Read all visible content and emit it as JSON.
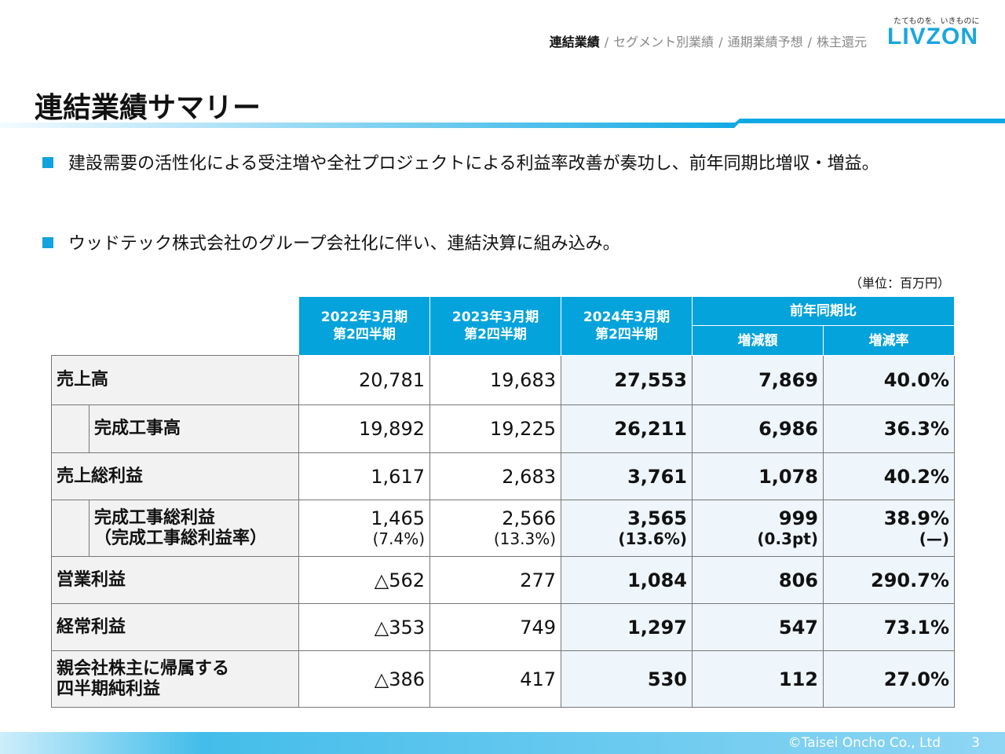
{
  "nav": {
    "items": [
      "連結業績",
      "セグメント別業績",
      "通期業績予想",
      "株主還元"
    ],
    "separator": "/",
    "active": 0
  },
  "brand": {
    "tagline": "たてものを、いきものに",
    "logo": "LIVZON",
    "color": "#1aa6e0"
  },
  "title": "連結業績サマリー",
  "bullets": [
    "建設需要の活性化による受注増や全社プロジェクトによる利益率改善が奏功し、前年同期比増収・増益。",
    "ウッドテック株式会社のグループ会社化に伴い、連結決算に組み込み。"
  ],
  "unit": "（単位：百万円）",
  "table": {
    "headers": [
      "2022年3月期\n第2四半期",
      "2023年3月期\n第2四半期",
      "2024年3月期\n第2四半期"
    ],
    "yoy_header": "前年同期比",
    "yoy_sub": [
      "増減額",
      "増減率"
    ],
    "rows": [
      {
        "label": "売上高",
        "indent": false,
        "values": [
          "20,781",
          "19,683",
          "27,553",
          "7,869",
          "40.0%"
        ]
      },
      {
        "label": "完成工事高",
        "indent": true,
        "values": [
          "19,892",
          "19,225",
          "26,211",
          "6,986",
          "36.3%"
        ]
      },
      {
        "label": "売上総利益",
        "indent": false,
        "values": [
          "1,617",
          "2,683",
          "3,761",
          "1,078",
          "40.2%"
        ]
      },
      {
        "label": "完成工事総利益",
        "label2": "（完成工事総利益率）",
        "indent": true,
        "values": [
          "1,465",
          "2,566",
          "3,565",
          "999",
          "38.9%"
        ],
        "subvalues": [
          "(7.4%)",
          "(13.3%)",
          "(13.6%)",
          "(0.3pt)",
          "(—)"
        ]
      },
      {
        "label": "営業利益",
        "indent": false,
        "values": [
          "△562",
          "277",
          "1,084",
          "806",
          "290.7%"
        ]
      },
      {
        "label": "経常利益",
        "indent": false,
        "values": [
          "△353",
          "749",
          "1,297",
          "547",
          "73.1%"
        ]
      },
      {
        "label": "親会社株主に帰属する",
        "label2": "四半期純利益",
        "indent": false,
        "values": [
          "△386",
          "417",
          "530",
          "112",
          "27.0%"
        ]
      }
    ]
  },
  "footer": {
    "copyright": "©Taisei Oncho Co., Ltd",
    "page": "3"
  },
  "colors": {
    "accent": "#04a3dc",
    "highlight": "#eef5fb",
    "label_bg": "#f2f2f2"
  }
}
